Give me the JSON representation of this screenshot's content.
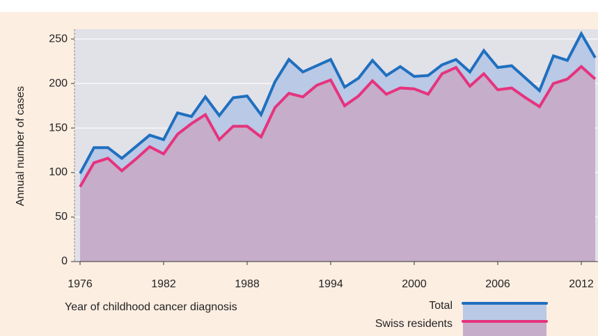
{
  "chart_data": {
    "type": "area",
    "x_label": "Year of childhood cancer diagnosis",
    "y_label": "Annual number of cases",
    "x": [
      1976,
      1977,
      1978,
      1979,
      1980,
      1981,
      1982,
      1983,
      1984,
      1985,
      1986,
      1987,
      1988,
      1989,
      1990,
      1991,
      1992,
      1993,
      1994,
      1995,
      1996,
      1997,
      1998,
      1999,
      2000,
      2001,
      2002,
      2003,
      2004,
      2005,
      2006,
      2007,
      2008,
      2009,
      2010,
      2011,
      2012,
      2013
    ],
    "series": [
      {
        "name": "Total",
        "color": "#1f6fbf",
        "fill": "#b9c9e6",
        "values": [
          99,
          128,
          128,
          116,
          129,
          142,
          137,
          167,
          163,
          185,
          164,
          184,
          186,
          165,
          202,
          227,
          213,
          220,
          227,
          196,
          206,
          226,
          209,
          219,
          208,
          209,
          221,
          227,
          213,
          237,
          218,
          220,
          206,
          192,
          231,
          226,
          256,
          229
        ]
      },
      {
        "name": "Swiss residents",
        "color": "#e6337d",
        "fill": "#c6adc9",
        "values": [
          84,
          111,
          116,
          102,
          115,
          129,
          121,
          143,
          155,
          165,
          137,
          152,
          152,
          140,
          173,
          189,
          185,
          198,
          204,
          175,
          186,
          203,
          188,
          195,
          194,
          188,
          211,
          218,
          197,
          211,
          193,
          195,
          184,
          174,
          200,
          205,
          219,
          205
        ]
      }
    ],
    "xlim": [
      1975.6,
      2013.2
    ],
    "xticks": [
      1976,
      1982,
      1988,
      1994,
      2000,
      2006,
      2012
    ],
    "ylim": [
      0,
      261
    ],
    "yticks": [
      0,
      50,
      100,
      150,
      200,
      250
    ],
    "grid": true,
    "legend": "bottom-right"
  }
}
